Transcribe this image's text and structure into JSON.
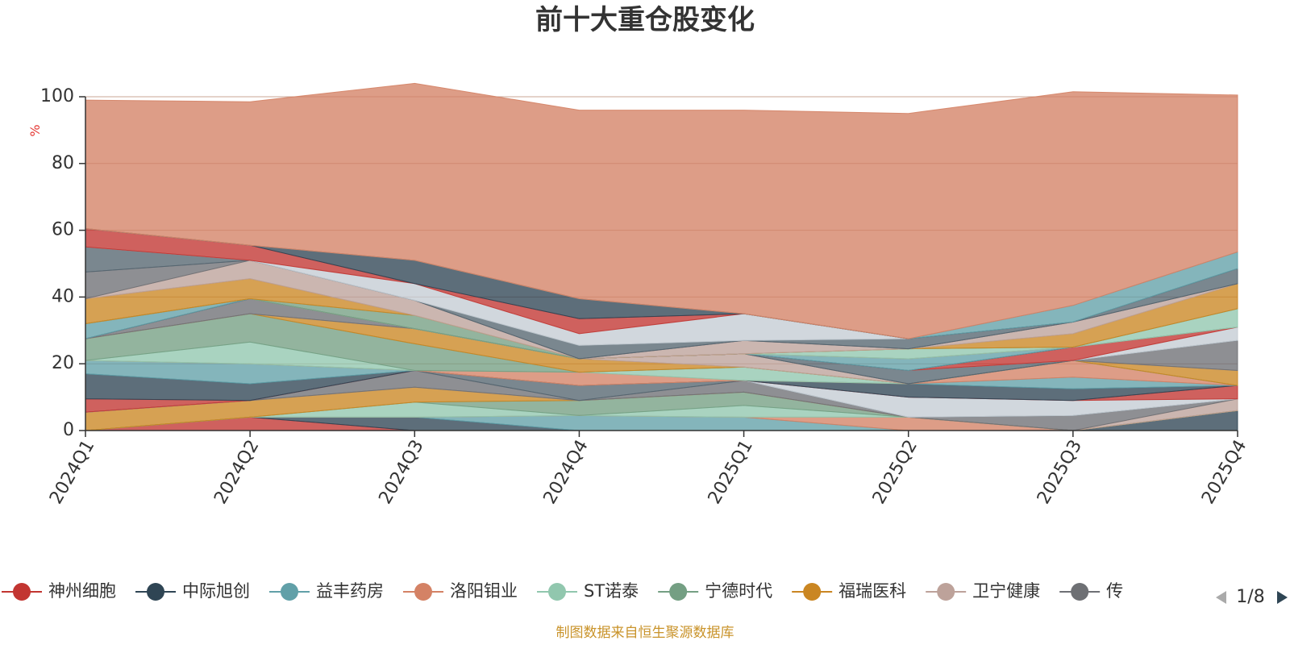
{
  "chart_data": {
    "type": "area",
    "stacked": true,
    "title": "前十大重仓股变化",
    "ylabel": "%",
    "ylim": [
      0,
      100
    ],
    "yticks": [
      0,
      20,
      40,
      60,
      80,
      100
    ],
    "grid": true,
    "categories": [
      "2024Q1",
      "2024Q2",
      "2024Q3",
      "2024Q4",
      "2025Q1",
      "2025Q2",
      "2025Q3",
      "2025Q4"
    ],
    "series": [
      {
        "name": "神州细胞",
        "color": "#c23531",
        "values": [
          0.0,
          4.0,
          0.0,
          0.0,
          0.0,
          0.0,
          0.0,
          0.0
        ]
      },
      {
        "name": "中际旭创",
        "color": "#2f4554",
        "values": [
          0.0,
          0.0,
          4.0,
          0.0,
          0.0,
          0.0,
          0.0,
          6.0
        ]
      },
      {
        "name": "益丰药房",
        "color": "#61a0a8",
        "values": [
          0.0,
          0.0,
          0.0,
          4.5,
          4.0,
          0.0,
          0.0,
          0.0
        ]
      },
      {
        "name": "洛阳钼业",
        "color": "#d48265",
        "values": [
          0.0,
          0.0,
          0.0,
          0.0,
          0.0,
          4.0,
          0.0,
          0.0
        ]
      },
      {
        "name": "ST诺泰",
        "color": "#91c7ae",
        "values": [
          0.0,
          0.0,
          4.5,
          0.0,
          3.5,
          0.0,
          0.0,
          0.0
        ]
      },
      {
        "name": "宁德时代",
        "color": "#749f83",
        "values": [
          0.0,
          0.0,
          0.0,
          4.5,
          4.0,
          0.0,
          0.0,
          0.0
        ]
      },
      {
        "name": "福瑞医科",
        "color": "#ca8622",
        "values": [
          5.5,
          5.0,
          4.5,
          0.0,
          0.0,
          0.0,
          0.0,
          0.0
        ]
      },
      {
        "name": "卫宁健康",
        "color": "#bda29a",
        "values": [
          0.0,
          0.0,
          0.0,
          0.0,
          0.0,
          0.0,
          0.0,
          3.5
        ]
      },
      {
        "name": "传",
        "color": "#6e7074",
        "values": [
          0.0,
          0.0,
          5.0,
          0.0,
          3.5,
          0.0,
          4.5,
          0.0
        ]
      },
      {
        "name": "",
        "color": "#546570",
        "values": [
          0.0,
          0.0,
          0.0,
          4.5,
          0.0,
          0.0,
          0.0,
          0.0
        ]
      },
      {
        "name": "",
        "color": "#c4ccd3",
        "values": [
          0.0,
          0.0,
          0.0,
          0.0,
          0.0,
          6.0,
          4.5,
          0.0
        ]
      },
      {
        "name": "",
        "color": "#c23531",
        "values": [
          4.0,
          0.0,
          0.0,
          0.0,
          0.0,
          0.0,
          0.0,
          4.0
        ]
      },
      {
        "name": "",
        "color": "#2f4554",
        "values": [
          7.5,
          5.0,
          0.0,
          0.0,
          0.0,
          4.0,
          3.5,
          0.0
        ]
      },
      {
        "name": "",
        "color": "#61a0a8",
        "values": [
          4.0,
          6.0,
          0.0,
          0.0,
          0.0,
          0.0,
          3.5,
          0.0
        ]
      },
      {
        "name": "",
        "color": "#d48265",
        "values": [
          0.0,
          0.0,
          0.0,
          4.0,
          0.0,
          0.0,
          5.0,
          0.0
        ]
      },
      {
        "name": "",
        "color": "#91c7ae",
        "values": [
          0.0,
          6.5,
          0.0,
          0.0,
          4.0,
          0.0,
          0.0,
          0.0
        ]
      },
      {
        "name": "",
        "color": "#749f83",
        "values": [
          6.5,
          8.5,
          8.0,
          0.0,
          0.0,
          0.0,
          0.0,
          0.0
        ]
      },
      {
        "name": "",
        "color": "#ca8622",
        "values": [
          0.0,
          0.0,
          4.5,
          4.0,
          0.0,
          0.0,
          0.0,
          4.5
        ]
      },
      {
        "name": "",
        "color": "#bda29a",
        "values": [
          0.0,
          0.0,
          0.0,
          0.0,
          4.0,
          0.0,
          0.0,
          0.0
        ]
      },
      {
        "name": "",
        "color": "#6e7074",
        "values": [
          0.0,
          4.5,
          0.0,
          0.0,
          0.0,
          0.0,
          0.0,
          9.0
        ]
      },
      {
        "name": "",
        "color": "#546570",
        "values": [
          0.0,
          0.0,
          0.0,
          0.0,
          0.0,
          4.0,
          0.0,
          0.0
        ]
      },
      {
        "name": "",
        "color": "#c4ccd3",
        "values": [
          0.0,
          0.0,
          0.0,
          0.0,
          0.0,
          0.0,
          0.0,
          4.0
        ]
      },
      {
        "name": "",
        "color": "#c23531",
        "values": [
          0.0,
          0.0,
          0.0,
          0.0,
          0.0,
          0.0,
          4.0,
          0.0
        ]
      },
      {
        "name": "",
        "color": "#2f4554",
        "values": [
          0.0,
          0.0,
          0.0,
          0.0,
          0.0,
          0.0,
          0.0,
          0.0
        ]
      },
      {
        "name": "",
        "color": "#61a0a8",
        "values": [
          4.5,
          0.0,
          0.0,
          0.0,
          0.0,
          3.5,
          0.0,
          0.0
        ]
      },
      {
        "name": "",
        "color": "#d48265",
        "values": [
          0.0,
          0.0,
          0.0,
          0.0,
          0.0,
          0.0,
          0.0,
          0.0
        ]
      },
      {
        "name": "",
        "color": "#91c7ae",
        "values": [
          0.0,
          0.0,
          0.0,
          0.0,
          0.0,
          3.0,
          0.0,
          5.5
        ]
      },
      {
        "name": "",
        "color": "#749f83",
        "values": [
          0.0,
          0.0,
          4.0,
          0.0,
          0.0,
          0.0,
          0.0,
          0.0
        ]
      },
      {
        "name": "",
        "color": "#ca8622",
        "values": [
          7.5,
          6.0,
          0.0,
          0.0,
          0.0,
          0.0,
          4.0,
          7.5
        ]
      },
      {
        "name": "",
        "color": "#bda29a",
        "values": [
          0.0,
          5.5,
          4.5,
          0.0,
          4.0,
          0.0,
          3.5,
          0.0
        ]
      },
      {
        "name": "",
        "color": "#6e7074",
        "values": [
          8.0,
          0.0,
          0.0,
          0.0,
          0.0,
          0.0,
          0.0,
          0.0
        ]
      },
      {
        "name": "",
        "color": "#546570",
        "values": [
          7.5,
          0.0,
          0.0,
          4.0,
          0.0,
          3.0,
          0.0,
          4.5
        ]
      },
      {
        "name": "",
        "color": "#c4ccd3",
        "values": [
          0.0,
          0.0,
          5.0,
          3.5,
          8.0,
          0.0,
          0.0,
          0.0
        ]
      },
      {
        "name": "",
        "color": "#c23531",
        "values": [
          5.5,
          4.5,
          0.0,
          4.5,
          0.0,
          0.0,
          0.0,
          0.0
        ]
      },
      {
        "name": "",
        "color": "#2f4554",
        "values": [
          0.0,
          0.0,
          7.0,
          6.0,
          0.0,
          0.0,
          0.0,
          0.0
        ]
      },
      {
        "name": "",
        "color": "#61a0a8",
        "values": [
          0.0,
          0.0,
          0.0,
          0.0,
          0.0,
          0.0,
          5.0,
          5.0
        ]
      },
      {
        "name": "",
        "color": "#d48265",
        "values": [
          38.5,
          43.0,
          53.0,
          56.5,
          61.0,
          67.5,
          64.0,
          47.0
        ]
      }
    ],
    "legend": {
      "position": "bottom",
      "items": [
        "神州细胞",
        "中际旭创",
        "益丰药房",
        "洛阳钼业",
        "ST诺泰",
        "宁德时代",
        "福瑞医科",
        "卫宁健康",
        "传"
      ],
      "colors": [
        "#c23531",
        "#2f4554",
        "#61a0a8",
        "#d48265",
        "#91c7ae",
        "#749f83",
        "#ca8622",
        "#bda29a",
        "#6e7074"
      ],
      "page": "1/8"
    },
    "source_note": "制图数据来自恒生聚源数据库"
  }
}
